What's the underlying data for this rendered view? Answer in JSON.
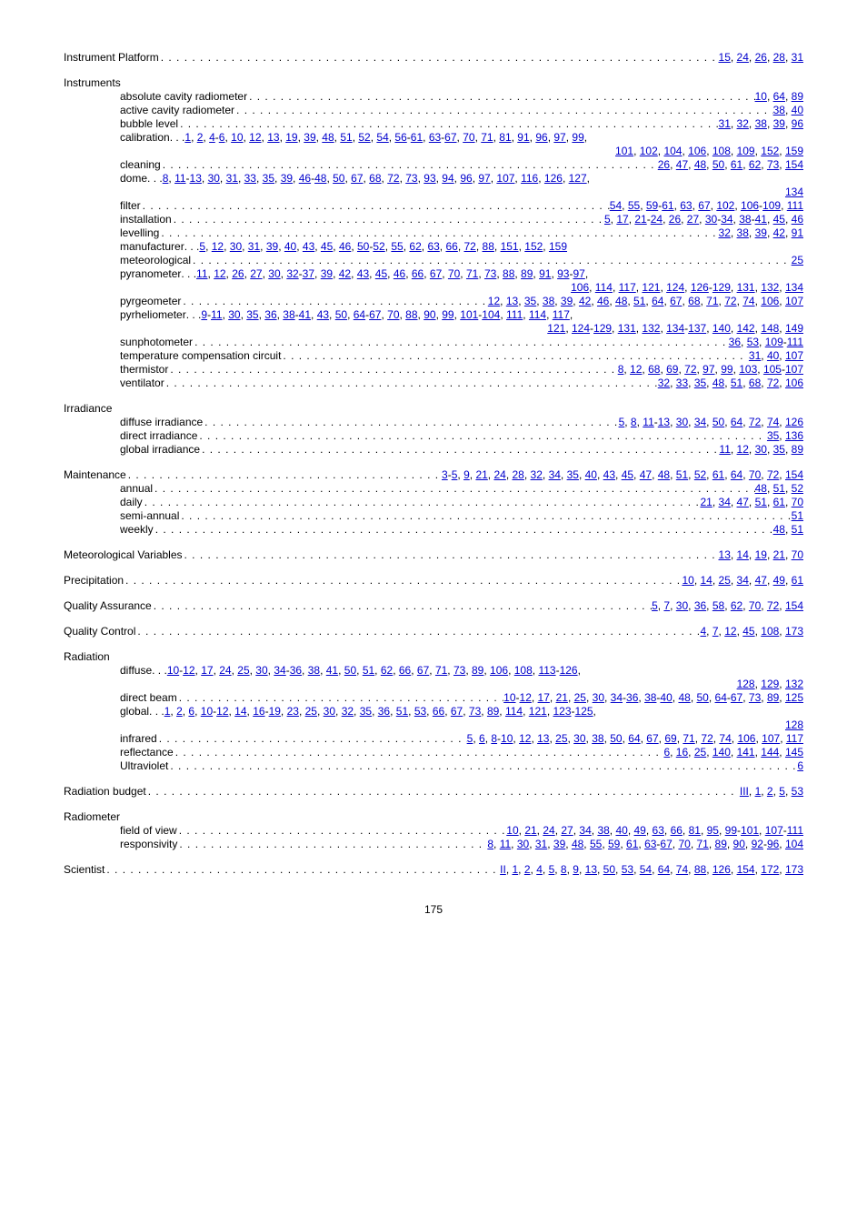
{
  "entries": [
    {
      "type": "row",
      "indent": 0,
      "label": "Instrument Platform",
      "pages": [
        "15",
        "24",
        "26",
        "28",
        "31"
      ]
    },
    {
      "type": "gap"
    },
    {
      "type": "row",
      "indent": 0,
      "label": "Instruments",
      "pages": []
    },
    {
      "type": "row",
      "indent": 1,
      "label": "absolute cavity radiometer",
      "pages": [
        "10",
        "64",
        "89"
      ]
    },
    {
      "type": "row",
      "indent": 1,
      "label": "active cavity radiometer",
      "pages": [
        "38",
        "40"
      ]
    },
    {
      "type": "row",
      "indent": 1,
      "label": "bubble level",
      "pages": [
        "31",
        "32",
        "38",
        "39",
        "96"
      ]
    },
    {
      "type": "row",
      "indent": 1,
      "label": "calibration",
      "leadDots": true,
      "pages": [
        "1",
        "2",
        "4",
        "-",
        "6",
        "10",
        "12",
        "13",
        "19",
        "39",
        "48",
        "51",
        "52",
        "54",
        "56",
        "-",
        "61",
        "63",
        "-",
        "67",
        "70",
        "71",
        "81",
        "91",
        "96",
        "97",
        "99",
        ","
      ]
    },
    {
      "type": "cont",
      "pages": [
        "101",
        "102",
        "104",
        "106",
        "108",
        "109",
        "152",
        "159"
      ]
    },
    {
      "type": "row",
      "indent": 1,
      "label": "cleaning",
      "pages": [
        "26",
        "47",
        "48",
        "50",
        "61",
        "62",
        "73",
        "154"
      ]
    },
    {
      "type": "row",
      "indent": 1,
      "label": "dome",
      "leadDots": true,
      "pages": [
        "8",
        "11",
        "-",
        "13",
        "30",
        "31",
        "33",
        "35",
        "39",
        "46",
        "-",
        "48",
        "50",
        "67",
        "68",
        "72",
        "73",
        "93",
        "94",
        "96",
        "97",
        "107",
        "116",
        "126",
        "127",
        ","
      ]
    },
    {
      "type": "cont",
      "pages": [
        "134"
      ]
    },
    {
      "type": "row",
      "indent": 1,
      "label": "filter",
      "pages": [
        "54",
        "55",
        "59",
        "-",
        "61",
        "63",
        "67",
        "102",
        "106",
        "-",
        "109",
        "111"
      ]
    },
    {
      "type": "row",
      "indent": 1,
      "label": "installation",
      "pages": [
        "5",
        "17",
        "21",
        "-",
        "24",
        "26",
        "27",
        "30",
        "-",
        "34",
        "38",
        "-",
        "41",
        "45",
        "46"
      ]
    },
    {
      "type": "row",
      "indent": 1,
      "label": "levelling",
      "pages": [
        "32",
        "38",
        "39",
        "42",
        "91"
      ]
    },
    {
      "type": "row",
      "indent": 1,
      "label": "manufacturer",
      "leadDots": true,
      "pages": [
        "5",
        "12",
        "30",
        "31",
        "39",
        "40",
        "43",
        "45",
        "46",
        "50",
        "-",
        "52",
        "55",
        "62",
        "63",
        "66",
        "72",
        "88",
        "151",
        "152",
        "159"
      ]
    },
    {
      "type": "row",
      "indent": 1,
      "label": "meteorological",
      "pages": [
        "25"
      ]
    },
    {
      "type": "row",
      "indent": 1,
      "label": "pyranometer",
      "leadDots": true,
      "pages": [
        "11",
        "12",
        "26",
        "27",
        "30",
        "32",
        "-",
        "37",
        "39",
        "42",
        "43",
        "45",
        "46",
        "66",
        "67",
        "70",
        "71",
        "73",
        "88",
        "89",
        "91",
        "93",
        "-",
        "97",
        ","
      ]
    },
    {
      "type": "cont",
      "pages": [
        "106",
        "114",
        "117",
        "121",
        "124",
        "126",
        "-",
        "129",
        "131",
        "132",
        "134"
      ]
    },
    {
      "type": "row",
      "indent": 1,
      "label": "pyrgeometer",
      "pages": [
        "12",
        "13",
        "35",
        "38",
        "39",
        "42",
        "46",
        "48",
        "51",
        "64",
        "67",
        "68",
        "71",
        "72",
        "74",
        "106",
        "107"
      ]
    },
    {
      "type": "row",
      "indent": 1,
      "label": "pyrheliometer",
      "leadDots": true,
      "pages": [
        "9",
        "-",
        "11",
        "30",
        "35",
        "36",
        "38",
        "-",
        "41",
        "43",
        "50",
        "64",
        "-",
        "67",
        "70",
        "88",
        "90",
        "99",
        "101",
        "-",
        "104",
        "111",
        "114",
        "117",
        ","
      ]
    },
    {
      "type": "cont",
      "pages": [
        "121",
        "124",
        "-",
        "129",
        "131",
        "132",
        "134",
        "-",
        "137",
        "140",
        "142",
        "148",
        "149"
      ]
    },
    {
      "type": "row",
      "indent": 1,
      "label": "sunphotometer",
      "pages": [
        "36",
        "53",
        "109",
        "-",
        "111"
      ]
    },
    {
      "type": "row",
      "indent": 1,
      "label": "temperature compensation circuit",
      "pages": [
        "31",
        "40",
        "107"
      ]
    },
    {
      "type": "row",
      "indent": 1,
      "label": "thermistor",
      "pages": [
        "8",
        "12",
        "68",
        "69",
        "72",
        "97",
        "99",
        "103",
        "105",
        "-",
        "107"
      ]
    },
    {
      "type": "row",
      "indent": 1,
      "label": "ventilator",
      "pages": [
        "32",
        "33",
        "35",
        "48",
        "51",
        "68",
        "72",
        "106"
      ]
    },
    {
      "type": "gap"
    },
    {
      "type": "row",
      "indent": 0,
      "label": "Irradiance",
      "pages": []
    },
    {
      "type": "row",
      "indent": 1,
      "label": "diffuse irradiance",
      "pages": [
        "5",
        "8",
        "11",
        "-",
        "13",
        "30",
        "34",
        "50",
        "64",
        "72",
        "74",
        "126"
      ]
    },
    {
      "type": "row",
      "indent": 1,
      "label": "direct irradiance",
      "pages": [
        "35",
        "136"
      ]
    },
    {
      "type": "row",
      "indent": 1,
      "label": "global irradiance",
      "pages": [
        "11",
        "12",
        "30",
        "35",
        "89"
      ]
    },
    {
      "type": "gap"
    },
    {
      "type": "row",
      "indent": 0,
      "label": "Maintenance",
      "pages": [
        "3",
        "-",
        "5",
        "9",
        "21",
        "24",
        "28",
        "32",
        "34",
        "35",
        "40",
        "43",
        "45",
        "47",
        "48",
        "51",
        "52",
        "61",
        "64",
        "70",
        "72",
        "154"
      ]
    },
    {
      "type": "row",
      "indent": 1,
      "label": "annual",
      "pages": [
        "48",
        "51",
        "52"
      ]
    },
    {
      "type": "row",
      "indent": 1,
      "label": "daily",
      "pages": [
        "21",
        "34",
        "47",
        "51",
        "61",
        "70"
      ]
    },
    {
      "type": "row",
      "indent": 1,
      "label": "semi-annual",
      "pages": [
        "51"
      ]
    },
    {
      "type": "row",
      "indent": 1,
      "label": "weekly",
      "pages": [
        "48",
        "51"
      ]
    },
    {
      "type": "gap"
    },
    {
      "type": "row",
      "indent": 0,
      "label": "Meteorological Variables",
      "pages": [
        "13",
        "14",
        "19",
        "21",
        "70"
      ]
    },
    {
      "type": "gap"
    },
    {
      "type": "row",
      "indent": 0,
      "label": "Precipitation",
      "pages": [
        "10",
        "14",
        "25",
        "34",
        "47",
        "49",
        "61"
      ]
    },
    {
      "type": "gap"
    },
    {
      "type": "row",
      "indent": 0,
      "label": "Quality Assurance",
      "pages": [
        "5",
        "7",
        "30",
        "36",
        "58",
        "62",
        "70",
        "72",
        "154"
      ]
    },
    {
      "type": "gap"
    },
    {
      "type": "row",
      "indent": 0,
      "label": "Quality Control",
      "pages": [
        "4",
        "7",
        "12",
        "45",
        "108",
        "173"
      ]
    },
    {
      "type": "gap"
    },
    {
      "type": "row",
      "indent": 0,
      "label": "Radiation",
      "pages": []
    },
    {
      "type": "row",
      "indent": 1,
      "label": "diffuse",
      "leadDots": true,
      "pages": [
        "10",
        "-",
        "12",
        "17",
        "24",
        "25",
        "30",
        "34",
        "-",
        "36",
        "38",
        "41",
        "50",
        "51",
        "62",
        "66",
        "67",
        "71",
        "73",
        "89",
        "106",
        "108",
        "113",
        "-",
        "126",
        ","
      ]
    },
    {
      "type": "cont",
      "pages": [
        "128",
        "129",
        "132"
      ]
    },
    {
      "type": "row",
      "indent": 1,
      "label": "direct beam",
      "pages": [
        "10",
        "-",
        "12",
        "17",
        "21",
        "25",
        "30",
        "34",
        "-",
        "36",
        "38",
        "-",
        "40",
        "48",
        "50",
        "64",
        "-",
        "67",
        "73",
        "89",
        "125"
      ]
    },
    {
      "type": "row",
      "indent": 1,
      "label": "global",
      "leadDots": true,
      "pages": [
        "1",
        "2",
        "6",
        "10",
        "-",
        "12",
        "14",
        "16",
        "-",
        "19",
        "23",
        "25",
        "30",
        "32",
        "35",
        "36",
        "51",
        "53",
        "66",
        "67",
        "73",
        "89",
        "114",
        "121",
        "123",
        "-",
        "125",
        ","
      ]
    },
    {
      "type": "cont",
      "pages": [
        "128"
      ]
    },
    {
      "type": "row",
      "indent": 1,
      "label": "infrared",
      "pages": [
        "5",
        "6",
        "8",
        "-",
        "10",
        "12",
        "13",
        "25",
        "30",
        "38",
        "50",
        "64",
        "67",
        "69",
        "71",
        "72",
        "74",
        "106",
        "107",
        "117"
      ]
    },
    {
      "type": "row",
      "indent": 1,
      "label": "reflectance",
      "pages": [
        "6",
        "16",
        "25",
        "140",
        "141",
        "144",
        "145"
      ]
    },
    {
      "type": "row",
      "indent": 1,
      "label": "Ultraviolet",
      "pages": [
        "6"
      ]
    },
    {
      "type": "gap"
    },
    {
      "type": "row",
      "indent": 0,
      "label": "Radiation budget",
      "pages": [
        "III",
        "1",
        "2",
        "5",
        "53"
      ]
    },
    {
      "type": "gap"
    },
    {
      "type": "row",
      "indent": 0,
      "label": "Radiometer",
      "pages": []
    },
    {
      "type": "row",
      "indent": 1,
      "label": "field of view",
      "pages": [
        "10",
        "21",
        "24",
        "27",
        "34",
        "38",
        "40",
        "49",
        "63",
        "66",
        "81",
        "95",
        "99",
        "-",
        "101",
        "107",
        "-",
        "111"
      ]
    },
    {
      "type": "row",
      "indent": 1,
      "label": "responsivity",
      "pages": [
        "8",
        "11",
        "30",
        "31",
        "39",
        "48",
        "55",
        "59",
        "61",
        "63",
        "-",
        "67",
        "70",
        "71",
        "89",
        "90",
        "92",
        "-",
        "96",
        "104"
      ]
    },
    {
      "type": "gap"
    },
    {
      "type": "row",
      "indent": 0,
      "label": "Scientist",
      "pages": [
        "II",
        "1",
        "2",
        "4",
        "5",
        "8",
        "9",
        "13",
        "50",
        "53",
        "54",
        "64",
        "74",
        "88",
        "126",
        "154",
        "172",
        "173"
      ]
    }
  ],
  "pageNumber": "175"
}
